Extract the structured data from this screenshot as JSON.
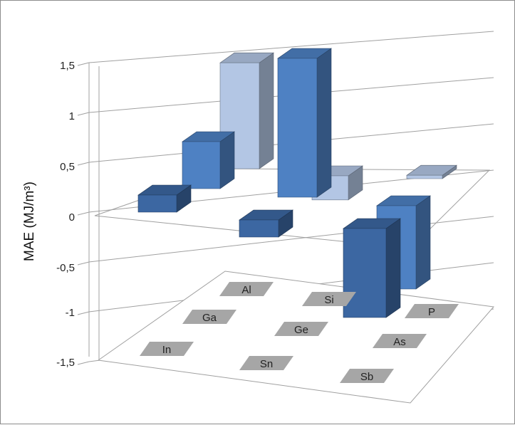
{
  "chart_data": {
    "type": "bar",
    "subtype": "3d-grid",
    "title": "",
    "ylabel": "MAE (MJ/m³)",
    "y_ticks": [
      "1,5",
      "1",
      "0,5",
      "0",
      "-0,5",
      "-1",
      "-1,5"
    ],
    "ylim": [
      -1.5,
      1.5
    ],
    "grid": true,
    "legend": "none",
    "series": [
      {
        "name": "",
        "categories": [
          "Al",
          "Si",
          "P"
        ],
        "values": [
          1.23,
          -0.25,
          0.04
        ]
      },
      {
        "name": "",
        "categories": [
          "Ga",
          "Ge",
          "As"
        ],
        "values": [
          0.55,
          1.5,
          -0.9
        ]
      },
      {
        "name": "",
        "categories": [
          "In",
          "Sn",
          "Sb"
        ],
        "values": [
          0.2,
          -0.2,
          -1.0
        ]
      }
    ],
    "colors": {
      "row_back": "#b3c6e4",
      "row_middle": "#4e81c3",
      "row_front": "#3c67a2",
      "gridline": "#a0a0a0",
      "floor_label_bg": "#a6a6a6"
    }
  }
}
